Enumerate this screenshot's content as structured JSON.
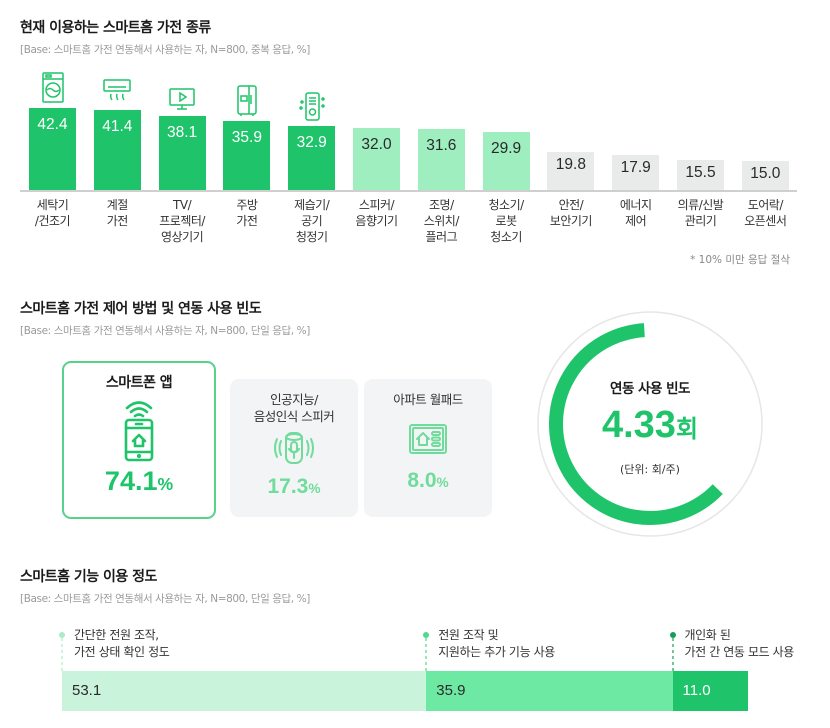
{
  "section1": {
    "title": "현재 이용하는 스마트홈 가전 종류",
    "base": "[Base: 스마트홈 가전 연동해서 사용하는 자, N=800, 중복 응답, %]",
    "footnote": "* 10% 미만 응답 절삭"
  },
  "section2": {
    "title": "스마트홈 가전 제어 방법 및 연동 사용 빈도",
    "base": "[Base: 스마트홈 가전 연동해서 사용하는 자, N=800, 단일 응답, %]",
    "cards": [
      {
        "title": "스마트폰 앱",
        "value": "74.1",
        "unit": "%",
        "icon": "smartphone-home-icon"
      },
      {
        "title": "인공지능/\n음성인식 스피커",
        "value": "17.3",
        "unit": "%",
        "icon": "ai-speaker-icon"
      },
      {
        "title": "아파트 월패드",
        "value": "8.0",
        "unit": "%",
        "icon": "wallpad-icon"
      }
    ],
    "frequency": {
      "title": "연동 사용 빈도",
      "value": "4.33",
      "unit": "회",
      "unit_note": "(단위: 회/주)",
      "max_per_week": 7
    }
  },
  "section3": {
    "title": "스마트홈 기능 이용 정도",
    "base": "[Base: 스마트홈 가전 연동해서 사용하는 자, N=800, 단일 응답, %]"
  },
  "colors": {
    "primary": "#1fc46a",
    "light": "#9eeec0",
    "grey": "#e9ebeb",
    "stack1": "#c9f3db",
    "stack2": "#6ee9a4",
    "stack3": "#1fc46a"
  },
  "chart_data": [
    {
      "type": "bar",
      "title": "현재 이용하는 스마트홈 가전 종류",
      "categories": [
        "세탁기\n/건조기",
        "계절\n가전",
        "TV/\n프로젝터/\n영상기기",
        "주방\n가전",
        "제습기/\n공기\n청정기",
        "스피커/\n음향기기",
        "조명/\n스위치/\n플러그",
        "청소기/\n로봇\n청소기",
        "안전/\n보안기기",
        "에너지\n제어",
        "의류/신발\n관리기",
        "도어락/\n오픈센서"
      ],
      "values": [
        42.4,
        41.4,
        38.1,
        35.9,
        32.9,
        32.0,
        31.6,
        29.9,
        19.8,
        17.9,
        15.5,
        15.0
      ],
      "labels": [
        "42.4",
        "41.4",
        "38.1",
        "35.9",
        "32.9",
        "32.0",
        "31.6",
        "29.9",
        "19.8",
        "17.9",
        "15.5",
        "15.0"
      ],
      "tiers": [
        "top",
        "top",
        "top",
        "top",
        "top",
        "mid",
        "mid",
        "mid",
        "low",
        "low",
        "low",
        "low"
      ],
      "icons": [
        "washing-machine-icon",
        "air-conditioner-icon",
        "tv-icon",
        "refrigerator-icon",
        "air-purifier-icon"
      ],
      "ylim": [
        0,
        42.4
      ],
      "unit": "%"
    },
    {
      "type": "bar",
      "stacked": true,
      "title": "스마트홈 기능 이용 정도",
      "series": [
        {
          "name": "간단한 전원 조작,\n가전 상태 확인 정도",
          "value": 53.1,
          "label": "53.1"
        },
        {
          "name": "전원 조작 및\n지원하는 추가 기능 사용",
          "value": 35.9,
          "label": "35.9"
        },
        {
          "name": "개인화 된\n가전 간 연동 모드 사용",
          "value": 11.0,
          "label": "11.0"
        }
      ],
      "unit": "%"
    }
  ]
}
